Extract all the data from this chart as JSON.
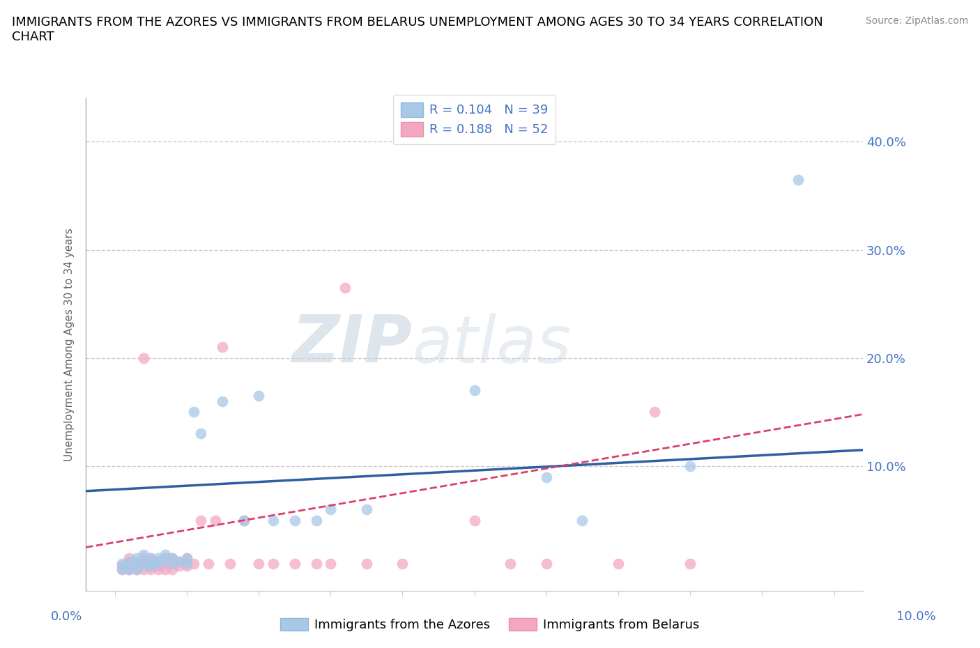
{
  "title": "IMMIGRANTS FROM THE AZORES VS IMMIGRANTS FROM BELARUS UNEMPLOYMENT AMONG AGES 30 TO 34 YEARS CORRELATION\nCHART",
  "source": "Source: ZipAtlas.com",
  "ylabel": "Unemployment Among Ages 30 to 34 years",
  "yticks": [
    0.0,
    0.1,
    0.2,
    0.3,
    0.4
  ],
  "ytick_labels": [
    "",
    "10.0%",
    "20.0%",
    "30.0%",
    "40.0%"
  ],
  "xlim": [
    -0.004,
    0.104
  ],
  "ylim": [
    -0.015,
    0.44
  ],
  "azores_R": 0.104,
  "azores_N": 39,
  "belarus_R": 0.188,
  "belarus_N": 52,
  "azores_color": "#a8c8e8",
  "belarus_color": "#f4a8c0",
  "azores_line_color": "#2e5fa3",
  "belarus_line_color": "#d94070",
  "watermark_zip": "ZIP",
  "watermark_atlas": "atlas",
  "azores_scatter_x": [
    0.001,
    0.001,
    0.002,
    0.002,
    0.003,
    0.003,
    0.003,
    0.004,
    0.004,
    0.004,
    0.005,
    0.005,
    0.005,
    0.006,
    0.006,
    0.006,
    0.007,
    0.007,
    0.008,
    0.008,
    0.009,
    0.01,
    0.01,
    0.011,
    0.012,
    0.015,
    0.018,
    0.02,
    0.022,
    0.025,
    0.028,
    0.03,
    0.035,
    0.05,
    0.06,
    0.065,
    0.08,
    0.095,
    0.002
  ],
  "azores_scatter_y": [
    0.005,
    0.01,
    0.008,
    0.012,
    0.01,
    0.015,
    0.005,
    0.008,
    0.012,
    0.018,
    0.01,
    0.015,
    0.008,
    0.01,
    0.012,
    0.015,
    0.013,
    0.018,
    0.01,
    0.015,
    0.012,
    0.01,
    0.015,
    0.15,
    0.13,
    0.16,
    0.05,
    0.165,
    0.05,
    0.05,
    0.05,
    0.06,
    0.06,
    0.17,
    0.09,
    0.05,
    0.1,
    0.365,
    0.005
  ],
  "belarus_scatter_x": [
    0.001,
    0.001,
    0.002,
    0.002,
    0.002,
    0.003,
    0.003,
    0.003,
    0.004,
    0.004,
    0.004,
    0.005,
    0.005,
    0.005,
    0.005,
    0.006,
    0.006,
    0.006,
    0.007,
    0.007,
    0.007,
    0.008,
    0.008,
    0.008,
    0.009,
    0.009,
    0.01,
    0.01,
    0.011,
    0.012,
    0.013,
    0.014,
    0.015,
    0.016,
    0.018,
    0.02,
    0.022,
    0.025,
    0.028,
    0.03,
    0.032,
    0.035,
    0.04,
    0.05,
    0.055,
    0.06,
    0.07,
    0.075,
    0.002,
    0.003,
    0.004,
    0.08
  ],
  "belarus_scatter_y": [
    0.005,
    0.008,
    0.005,
    0.01,
    0.015,
    0.005,
    0.008,
    0.012,
    0.005,
    0.01,
    0.015,
    0.005,
    0.008,
    0.012,
    0.015,
    0.005,
    0.008,
    0.012,
    0.005,
    0.01,
    0.015,
    0.005,
    0.01,
    0.015,
    0.008,
    0.012,
    0.008,
    0.015,
    0.01,
    0.05,
    0.01,
    0.05,
    0.21,
    0.01,
    0.05,
    0.01,
    0.01,
    0.01,
    0.01,
    0.01,
    0.265,
    0.01,
    0.01,
    0.05,
    0.01,
    0.01,
    0.01,
    0.15,
    0.005,
    0.005,
    0.2,
    0.01
  ],
  "azores_trend_x": [
    -0.004,
    0.104
  ],
  "azores_trend_y": [
    0.077,
    0.115
  ],
  "belarus_trend_x": [
    -0.004,
    0.104
  ],
  "belarus_trend_y": [
    0.025,
    0.148
  ]
}
